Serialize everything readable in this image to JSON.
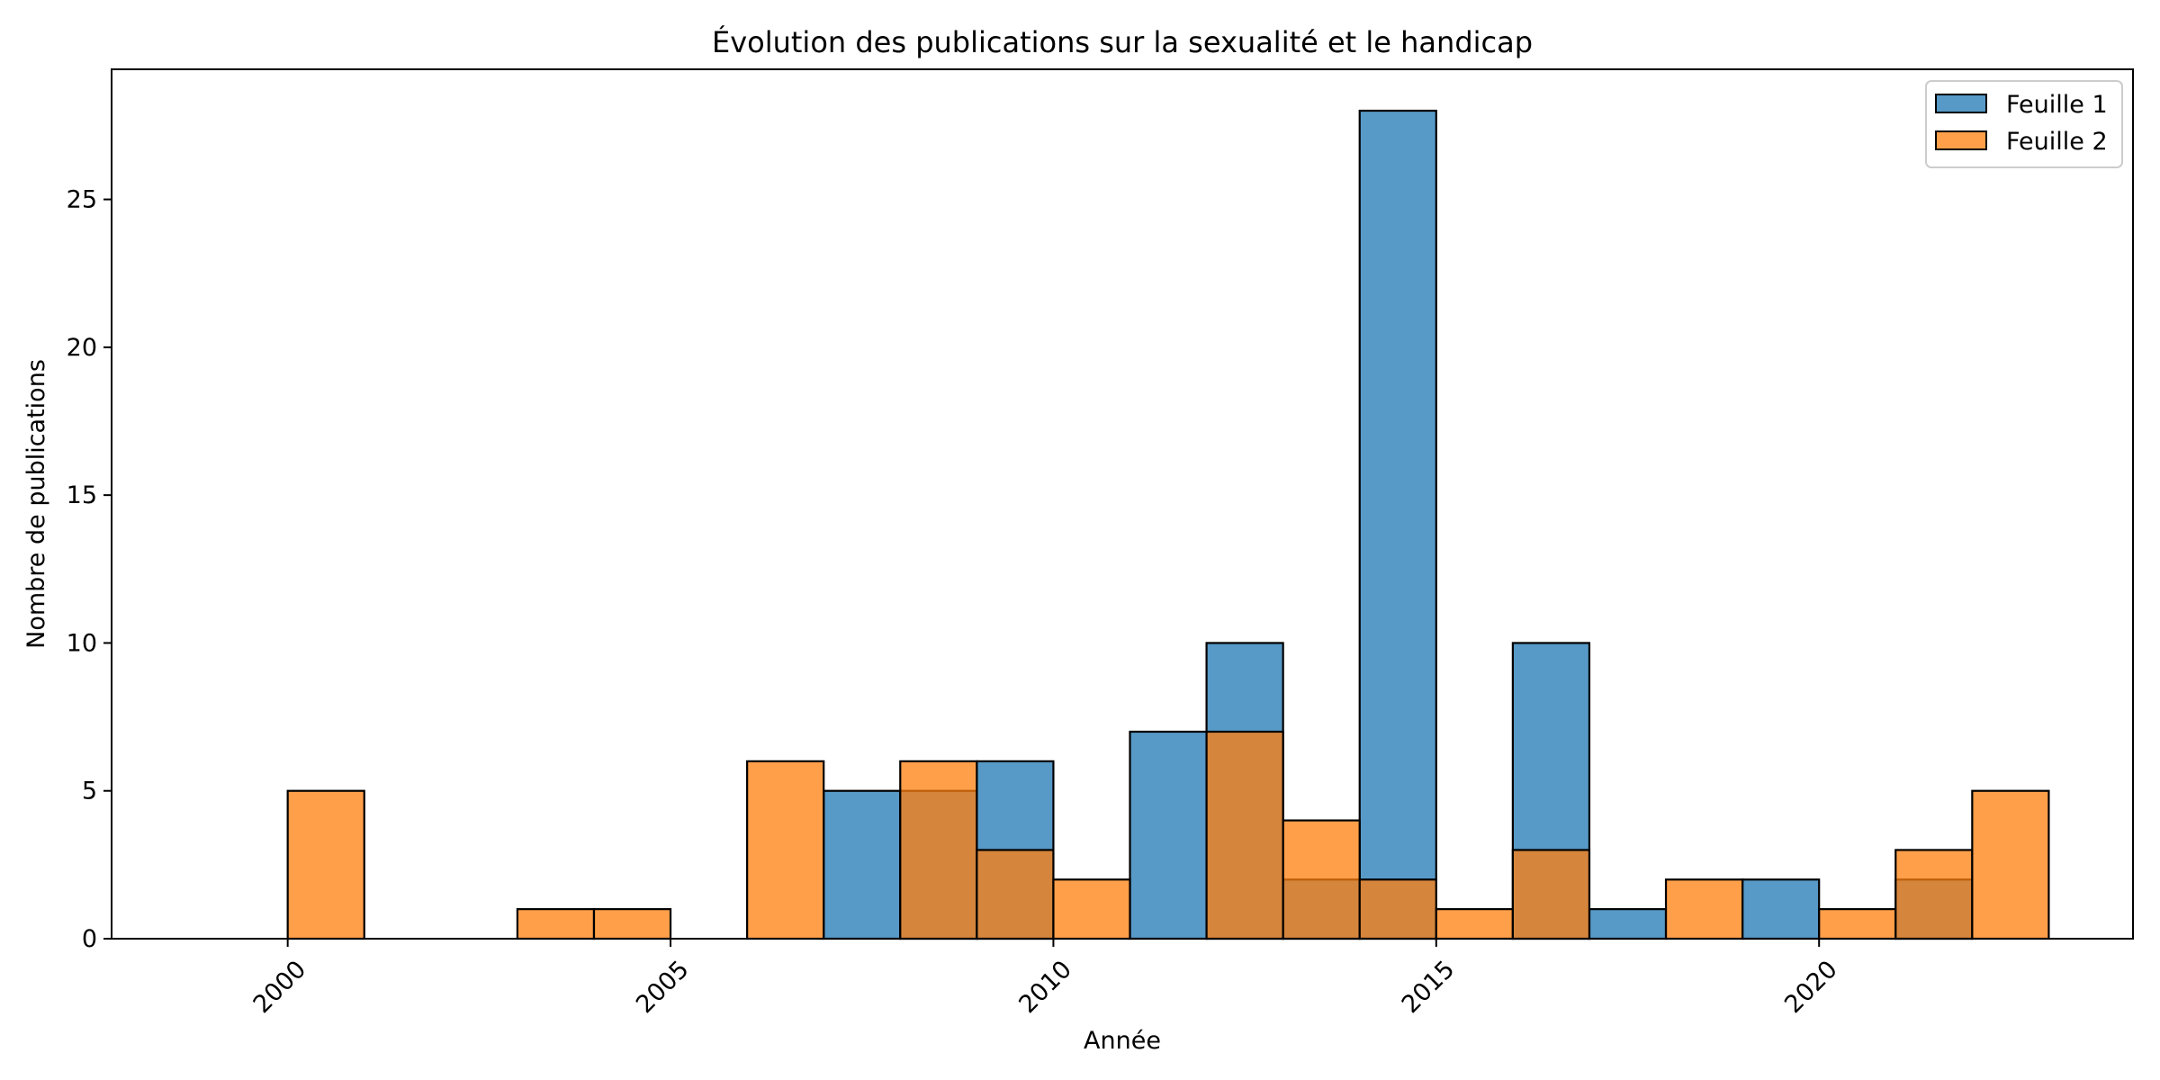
{
  "chart_data": {
    "type": "bar",
    "title": "Évolution des publications sur la sexualité et le handicap",
    "xlabel": "Année",
    "ylabel": "Nombre de publications",
    "xlim": [
      1997.7,
      2024.1
    ],
    "ylim": [
      0,
      29.4
    ],
    "xticks": [
      2000,
      2005,
      2010,
      2015,
      2020
    ],
    "yticks": [
      0,
      5,
      10,
      15,
      20,
      25
    ],
    "grid": false,
    "legend_position": "top-right",
    "series": [
      {
        "name": "Feuille 1",
        "color": "#1f77b4",
        "bins": [
          {
            "x0": 2007,
            "x1": 2008,
            "value": 5
          },
          {
            "x0": 2008,
            "x1": 2009,
            "value": 5
          },
          {
            "x0": 2009,
            "x1": 2010,
            "value": 6
          },
          {
            "x0": 2011,
            "x1": 2012,
            "value": 7
          },
          {
            "x0": 2012,
            "x1": 2013,
            "value": 10
          },
          {
            "x0": 2013,
            "x1": 2014,
            "value": 2
          },
          {
            "x0": 2014,
            "x1": 2015,
            "value": 28
          },
          {
            "x0": 2016,
            "x1": 2017,
            "value": 10
          },
          {
            "x0": 2017,
            "x1": 2018,
            "value": 1
          },
          {
            "x0": 2019,
            "x1": 2020,
            "value": 2
          },
          {
            "x0": 2021,
            "x1": 2022,
            "value": 2
          }
        ]
      },
      {
        "name": "Feuille 2",
        "color": "#ff7f0e",
        "bins": [
          {
            "x0": 2000,
            "x1": 2001,
            "value": 5
          },
          {
            "x0": 2003,
            "x1": 2004,
            "value": 1
          },
          {
            "x0": 2004,
            "x1": 2005,
            "value": 1
          },
          {
            "x0": 2006,
            "x1": 2007,
            "value": 6
          },
          {
            "x0": 2008,
            "x1": 2009,
            "value": 6
          },
          {
            "x0": 2009,
            "x1": 2010,
            "value": 3
          },
          {
            "x0": 2010,
            "x1": 2011,
            "value": 2
          },
          {
            "x0": 2012,
            "x1": 2013,
            "value": 7
          },
          {
            "x0": 2013,
            "x1": 2014,
            "value": 4
          },
          {
            "x0": 2014,
            "x1": 2015,
            "value": 2
          },
          {
            "x0": 2015,
            "x1": 2016,
            "value": 1
          },
          {
            "x0": 2016,
            "x1": 2017,
            "value": 3
          },
          {
            "x0": 2018,
            "x1": 2019,
            "value": 2
          },
          {
            "x0": 2020,
            "x1": 2021,
            "value": 1
          },
          {
            "x0": 2021,
            "x1": 2022,
            "value": 3
          },
          {
            "x0": 2022,
            "x1": 2023,
            "value": 5
          }
        ]
      }
    ]
  }
}
